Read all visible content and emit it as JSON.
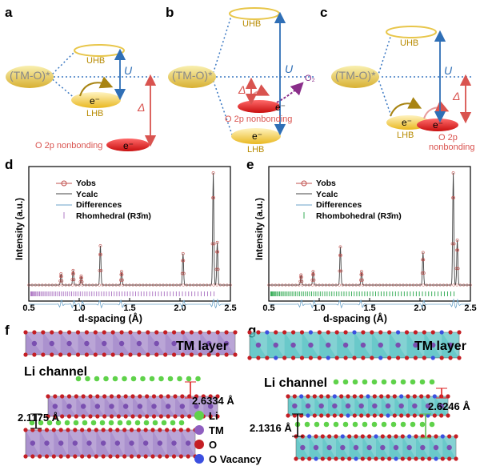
{
  "panel_letters": [
    "a",
    "b",
    "c",
    "d",
    "e",
    "f",
    "g"
  ],
  "band_diagram": {
    "tmo_label": "(TM-O)*",
    "uhb": "UHB",
    "lhb": "LHB",
    "u_symbol": "U",
    "delta_symbol": "Δ",
    "electron": "e⁻",
    "o2p_nonbonding": "O 2p nonbonding",
    "o2p_nonbonding_line1": "O 2p",
    "o2p_nonbonding_line2": "nonbonding",
    "o2_label": "O₂"
  },
  "chart_data": [
    {
      "panel": "d",
      "type": "line",
      "xlabel": "d-spacing (Å)",
      "ylabel": "Intensity (a.u.)",
      "xlim": [
        0.5,
        2.5
      ],
      "xticks": [
        "0.5",
        "1.0",
        "1.5",
        "2.0",
        "2.5"
      ],
      "legend": [
        "Yobs",
        "Ycalc",
        "Differences",
        "Rhomhedral (R3̄m)"
      ],
      "legend_position": "top-center",
      "peaks": [
        {
          "x": 0.82,
          "y": 0.1
        },
        {
          "x": 0.94,
          "y": 0.13
        },
        {
          "x": 1.02,
          "y": 0.08
        },
        {
          "x": 1.21,
          "y": 0.35
        },
        {
          "x": 1.42,
          "y": 0.12
        },
        {
          "x": 2.03,
          "y": 0.28
        },
        {
          "x": 2.33,
          "y": 1.0
        },
        {
          "x": 2.37,
          "y": 0.38
        }
      ]
    },
    {
      "panel": "e",
      "type": "line",
      "xlabel": "d-spacing (Å)",
      "ylabel": "Intensity (a.u.)",
      "xlim": [
        0.5,
        2.5
      ],
      "xticks": [
        "0.5",
        "1.0",
        "1.5",
        "2.0",
        "2.5"
      ],
      "legend": [
        "Yobs",
        "Ycalc",
        "Differences",
        "Rhombohedral (R3̄m)"
      ],
      "legend_position": "top-center",
      "peaks": [
        {
          "x": 0.82,
          "y": 0.09
        },
        {
          "x": 0.94,
          "y": 0.12
        },
        {
          "x": 1.21,
          "y": 0.34
        },
        {
          "x": 1.42,
          "y": 0.12
        },
        {
          "x": 2.03,
          "y": 0.29
        },
        {
          "x": 2.33,
          "y": 1.0
        },
        {
          "x": 2.37,
          "y": 0.4
        }
      ]
    }
  ],
  "structure_f": {
    "tm_layer": "TM layer",
    "li_channel": "Li channel",
    "d1": "2.6334 Å",
    "d2": "2.1175 Å",
    "legend": [
      "Li",
      "TM",
      "O",
      "O Vacancy"
    ]
  },
  "structure_g": {
    "tm_layer": "TM layer",
    "li_channel": "Li channel",
    "d1": "2.6246 Å",
    "d2": "2.1316 Å"
  },
  "colors": {
    "uhb_yellow": "#e8c64a",
    "lhb_yellow": "#f3bf1f",
    "o2p_red": "#e32222",
    "arrow_blue": "#2f6fb6",
    "arrow_red": "#d9534f",
    "dotted_blue": "#3b78c2",
    "yobs": "#c0504d",
    "ticks_d": "#b07cc6",
    "ticks_e": "#3aae5a",
    "diff": "#6ba3c9",
    "purple_layer": "#8f6dbd",
    "teal_layer": "#38b7b8"
  }
}
